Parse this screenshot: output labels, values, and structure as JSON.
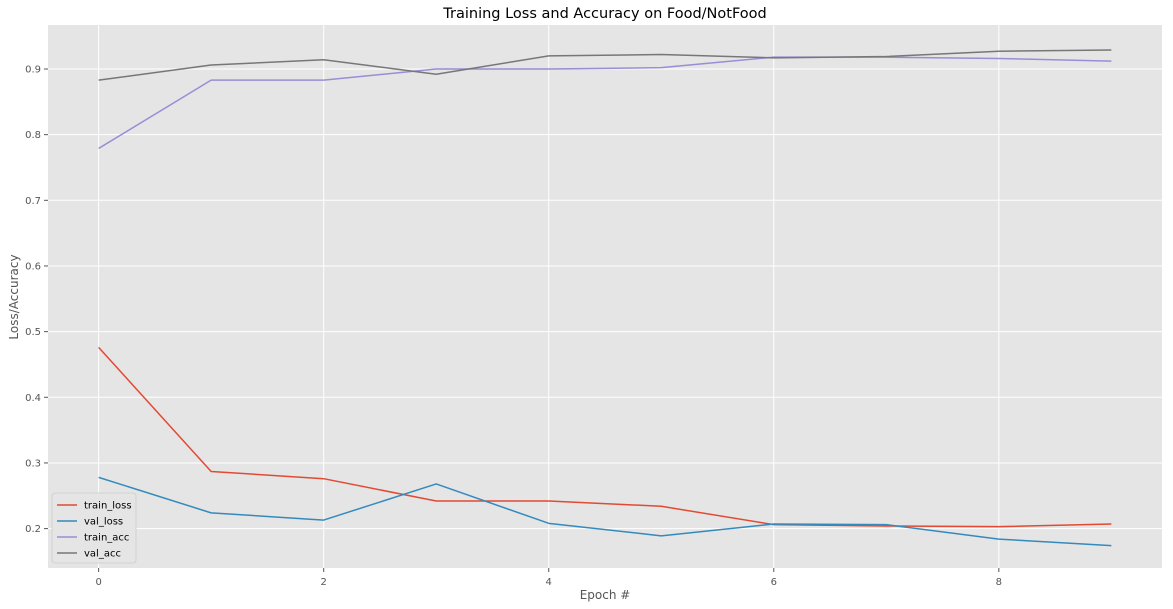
{
  "chart_data": {
    "type": "line",
    "title": "Training Loss and Accuracy on Food/NotFood",
    "xlabel": "Epoch #",
    "ylabel": "Loss/Accuracy",
    "xlim": [
      -0.45,
      9.45
    ],
    "ylim": [
      0.14,
      0.967
    ],
    "xticks": [
      0,
      2,
      4,
      6,
      8
    ],
    "yticks": [
      0.2,
      0.3,
      0.4,
      0.5,
      0.6,
      0.7,
      0.8,
      0.9
    ],
    "xtick_labels": [
      "0",
      "2",
      "4",
      "6",
      "8"
    ],
    "ytick_labels": [
      "0.2",
      "0.3",
      "0.4",
      "0.5",
      "0.6",
      "0.7",
      "0.8",
      "0.9"
    ],
    "grid": true,
    "legend_position": "bottom-left",
    "background_color": "#E5E5E5",
    "grid_color": "#FFFFFF",
    "x": [
      0,
      1,
      2,
      3,
      4,
      5,
      6,
      7,
      8,
      9
    ],
    "series": [
      {
        "name": "train_loss",
        "color": "#E24A33",
        "values": [
          0.476,
          0.287,
          0.276,
          0.242,
          0.242,
          0.234,
          0.206,
          0.204,
          0.203,
          0.207
        ]
      },
      {
        "name": "val_loss",
        "color": "#348ABD",
        "values": [
          0.278,
          0.224,
          0.213,
          0.268,
          0.208,
          0.189,
          0.207,
          0.206,
          0.184,
          0.174
        ]
      },
      {
        "name": "train_acc",
        "color": "#988ED5",
        "values": [
          0.779,
          0.883,
          0.883,
          0.9,
          0.9,
          0.902,
          0.918,
          0.918,
          0.916,
          0.912
        ]
      },
      {
        "name": "val_acc",
        "color": "#777777",
        "values": [
          0.883,
          0.906,
          0.914,
          0.892,
          0.92,
          0.922,
          0.917,
          0.919,
          0.927,
          0.929
        ]
      }
    ]
  }
}
